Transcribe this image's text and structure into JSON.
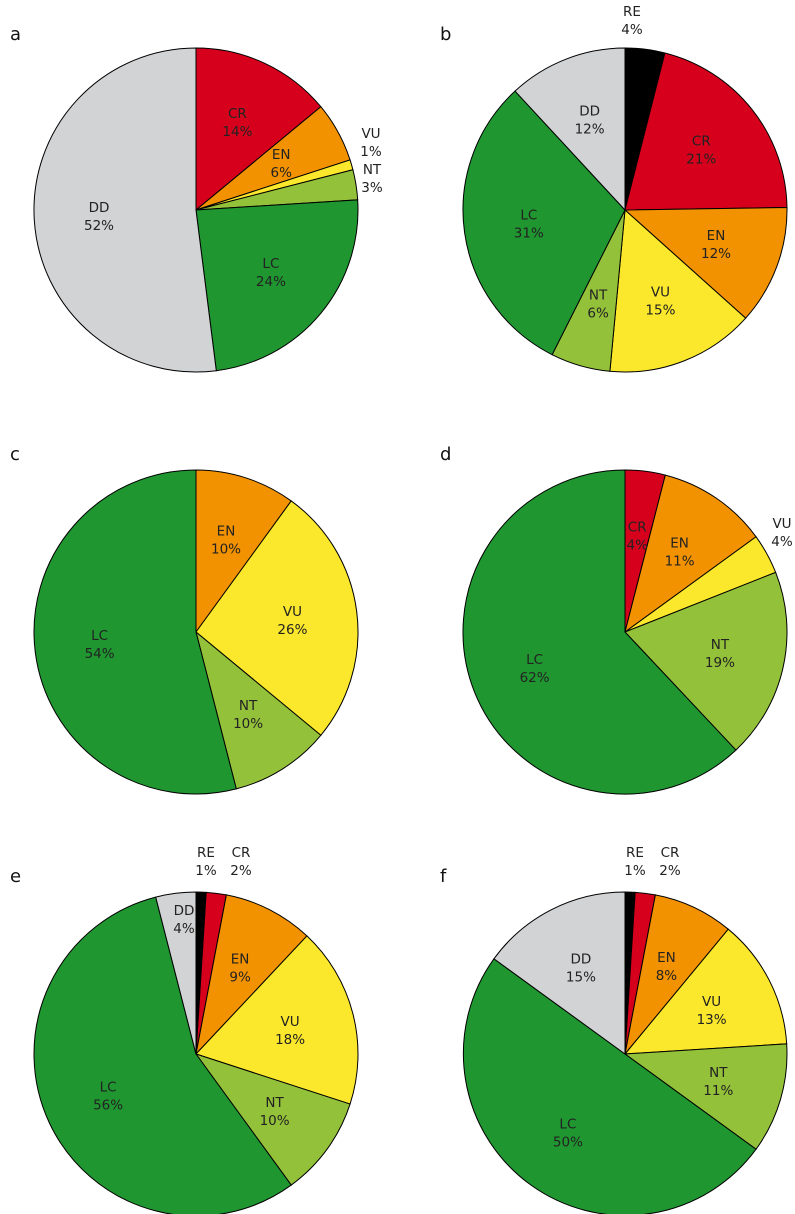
{
  "colors": {
    "RE": "#000000",
    "CR": "#d7001c",
    "EN": "#f39200",
    "VU": "#fbe82c",
    "NT": "#94c13a",
    "LC": "#1f9630",
    "DD": "#d2d3d5"
  },
  "chart_data": [
    {
      "type": "pie",
      "panel": "a",
      "slices": [
        {
          "label": "CR",
          "value": 14,
          "value_text": "14%"
        },
        {
          "label": "EN",
          "value": 6,
          "value_text": "6%"
        },
        {
          "label": "VU",
          "value": 1,
          "value_text": "1%"
        },
        {
          "label": "NT",
          "value": 3,
          "value_text": "3%"
        },
        {
          "label": "LC",
          "value": 24,
          "value_text": "24%"
        },
        {
          "label": "DD",
          "value": 52,
          "value_text": "52%"
        }
      ]
    },
    {
      "type": "pie",
      "panel": "b",
      "slices": [
        {
          "label": "RE",
          "value": 4,
          "value_text": "4%"
        },
        {
          "label": "CR",
          "value": 21,
          "value_text": "21%"
        },
        {
          "label": "EN",
          "value": 12,
          "value_text": "12%"
        },
        {
          "label": "VU",
          "value": 15,
          "value_text": "15%"
        },
        {
          "label": "NT",
          "value": 6,
          "value_text": "6%"
        },
        {
          "label": "LC",
          "value": 31,
          "value_text": "31%"
        },
        {
          "label": "DD",
          "value": 12,
          "value_text": "12%"
        }
      ]
    },
    {
      "type": "pie",
      "panel": "c",
      "slices": [
        {
          "label": "EN",
          "value": 10,
          "value_text": "10%"
        },
        {
          "label": "VU",
          "value": 26,
          "value_text": "26%"
        },
        {
          "label": "NT",
          "value": 10,
          "value_text": "10%"
        },
        {
          "label": "LC",
          "value": 54,
          "value_text": "54%"
        }
      ]
    },
    {
      "type": "pie",
      "panel": "d",
      "slices": [
        {
          "label": "CR",
          "value": 4,
          "value_text": "4%"
        },
        {
          "label": "EN",
          "value": 11,
          "value_text": "11%"
        },
        {
          "label": "VU",
          "value": 4,
          "value_text": "4%"
        },
        {
          "label": "NT",
          "value": 19,
          "value_text": "19%"
        },
        {
          "label": "LC",
          "value": 62,
          "value_text": "62%"
        }
      ]
    },
    {
      "type": "pie",
      "panel": "e",
      "slices": [
        {
          "label": "RE",
          "value": 1,
          "value_text": "1%"
        },
        {
          "label": "CR",
          "value": 2,
          "value_text": "2%"
        },
        {
          "label": "EN",
          "value": 9,
          "value_text": "9%"
        },
        {
          "label": "VU",
          "value": 18,
          "value_text": "18%"
        },
        {
          "label": "NT",
          "value": 10,
          "value_text": "10%"
        },
        {
          "label": "LC",
          "value": 56,
          "value_text": "56%"
        },
        {
          "label": "DD",
          "value": 4,
          "value_text": "4%"
        }
      ]
    },
    {
      "type": "pie",
      "panel": "f",
      "slices": [
        {
          "label": "RE",
          "value": 1,
          "value_text": "1%"
        },
        {
          "label": "CR",
          "value": 2,
          "value_text": "2%"
        },
        {
          "label": "EN",
          "value": 8,
          "value_text": "8%"
        },
        {
          "label": "VU",
          "value": 13,
          "value_text": "13%"
        },
        {
          "label": "NT",
          "value": 11,
          "value_text": "11%"
        },
        {
          "label": "LC",
          "value": 50,
          "value_text": "50%"
        },
        {
          "label": "DD",
          "value": 15,
          "value_text": "15%"
        }
      ]
    }
  ]
}
